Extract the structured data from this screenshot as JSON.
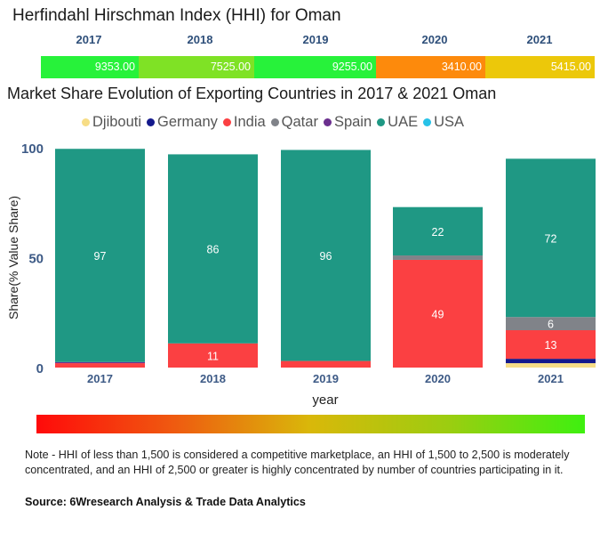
{
  "hhi": {
    "title": "Herfindahl Hirschman Index (HHI) for Oman",
    "cells": [
      {
        "year": "2017",
        "value": "9353.00",
        "color": "#27f23a"
      },
      {
        "year": "2018",
        "value": "7525.00",
        "color": "#7fe225"
      },
      {
        "year": "2019",
        "value": "9255.00",
        "color": "#27f23a"
      },
      {
        "year": "2020",
        "value": "3410.00",
        "color": "#fd8a0c"
      },
      {
        "year": "2021",
        "value": "5415.00",
        "color": "#ecc80a"
      }
    ]
  },
  "gradient_legend": {
    "from_color": "#ff0a0a",
    "mid_color": "#d9b80a",
    "to_color": "#3ef010"
  },
  "note": "Note - HHI of less than 1,500 is considered a competitive marketplace, an HHI of 1,500 to 2,500 is moderately concentrated, and an HHI of 2,500 or greater is highly concentrated by number of countries participating in it.",
  "source": "Source: 6Wresearch Analysis & Trade Data Analytics",
  "chart_data": {
    "type": "bar",
    "stacked": true,
    "title": "Market Share Evolution of Exporting Countries in 2017 & 2021 Oman",
    "xlabel": "year",
    "ylabel": "Share(% Value Share)",
    "ylim": [
      0,
      100
    ],
    "yticks": [
      0,
      50,
      100
    ],
    "grid": false,
    "legend_position": "top",
    "categories": [
      "2017",
      "2018",
      "2019",
      "2020",
      "2021"
    ],
    "series": [
      {
        "name": "Djibouti",
        "color": "#f7dd86",
        "values": [
          0,
          0,
          0,
          0,
          2
        ]
      },
      {
        "name": "Germany",
        "color": "#14198c",
        "values": [
          0,
          0,
          0,
          0,
          2
        ]
      },
      {
        "name": "India",
        "color": "#fb4042",
        "values": [
          2,
          11,
          3,
          49,
          13
        ]
      },
      {
        "name": "Qatar",
        "color": "#808389",
        "values": [
          0,
          0,
          0,
          2,
          6
        ]
      },
      {
        "name": "Spain",
        "color": "#6b2f8e",
        "values": [
          0.5,
          0,
          0,
          0,
          0
        ]
      },
      {
        "name": "UAE",
        "color": "#1f9884",
        "values": [
          97,
          86,
          96,
          22,
          72
        ]
      },
      {
        "name": "USA",
        "color": "#27c2e8",
        "values": [
          0,
          0,
          0,
          0,
          0
        ]
      }
    ],
    "data_labels": [
      {
        "category": "2017",
        "series": "UAE",
        "label": "97"
      },
      {
        "category": "2018",
        "series": "UAE",
        "label": "86"
      },
      {
        "category": "2018",
        "series": "India",
        "label": "11"
      },
      {
        "category": "2019",
        "series": "UAE",
        "label": "96"
      },
      {
        "category": "2020",
        "series": "UAE",
        "label": "22"
      },
      {
        "category": "2020",
        "series": "India",
        "label": "49"
      },
      {
        "category": "2021",
        "series": "UAE",
        "label": "72"
      },
      {
        "category": "2021",
        "series": "Qatar",
        "label": "6"
      },
      {
        "category": "2021",
        "series": "India",
        "label": "13"
      }
    ]
  }
}
